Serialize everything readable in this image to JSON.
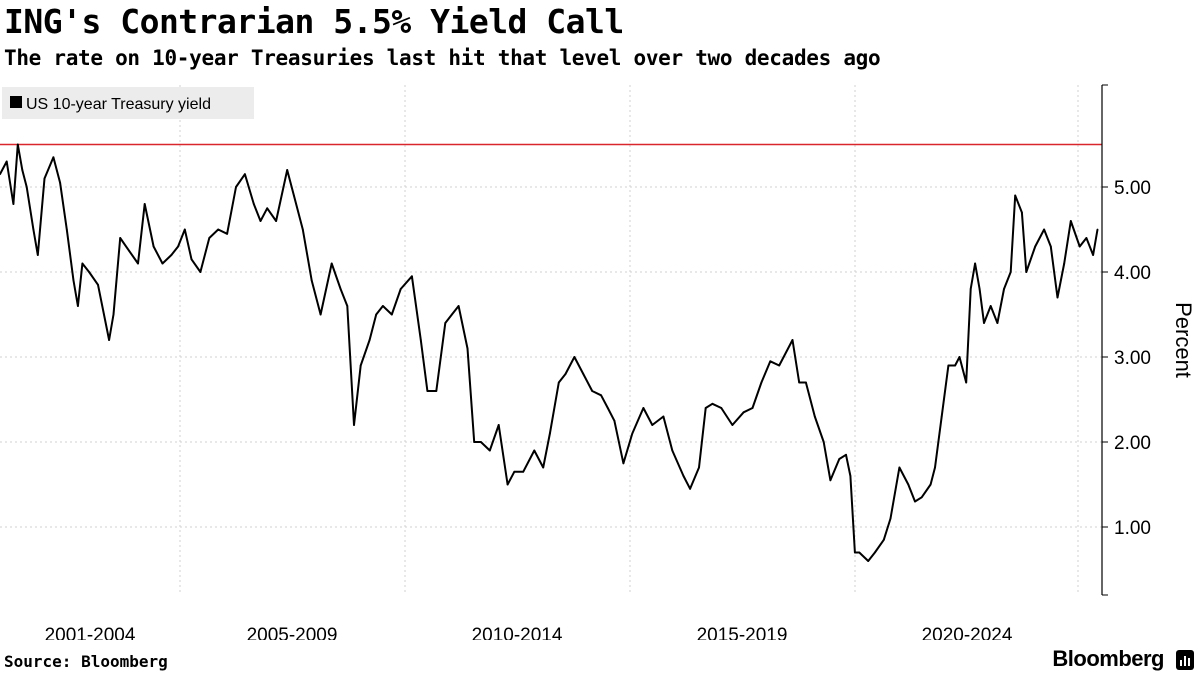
{
  "header": {
    "title": "ING's Contrarian 5.5% Yield Call",
    "subtitle": "The rate on 10-year Treasuries last hit that level over two decades ago"
  },
  "footer": {
    "source": "Source: Bloomberg",
    "brand": "Bloomberg"
  },
  "colors": {
    "line": "#000000",
    "reference_line": "#d9262c",
    "grid": "#d0d0d0",
    "axis": "#000000",
    "legend_bg": "#ececec"
  },
  "chart_data": {
    "type": "line",
    "ylabel": "Percent",
    "ylim": [
      0.2,
      6.2
    ],
    "yticks": [
      1,
      2,
      3,
      4,
      5
    ],
    "ytick_labels": [
      "1.00",
      "2.00",
      "3.00",
      "4.00",
      "5.00"
    ],
    "xlim": [
      2001.0,
      2025.75
    ],
    "xtick_labels": [
      "2001-2004",
      "2005-2009",
      "2010-2014",
      "2015-2019",
      "2020-2024"
    ],
    "legend": {
      "position": "top-left",
      "entries": [
        "US 10-year Treasury yield"
      ]
    },
    "grid": true,
    "reference_line": {
      "value": 5.5
    },
    "series": [
      {
        "name": "US 10-year Treasury yield",
        "x": [
          2001.0,
          2001.15,
          2001.3,
          2001.4,
          2001.5,
          2001.6,
          2001.75,
          2001.85,
          2002.0,
          2002.2,
          2002.35,
          2002.5,
          2002.65,
          2002.75,
          2002.85,
          2003.0,
          2003.2,
          2003.45,
          2003.55,
          2003.7,
          2003.9,
          2004.1,
          2004.25,
          2004.45,
          2004.65,
          2004.85,
          2005.0,
          2005.15,
          2005.3,
          2005.5,
          2005.7,
          2005.9,
          2006.1,
          2006.3,
          2006.5,
          2006.7,
          2006.85,
          2007.0,
          2007.2,
          2007.45,
          2007.6,
          2007.8,
          2008.0,
          2008.2,
          2008.45,
          2008.65,
          2008.8,
          2008.95,
          2009.1,
          2009.3,
          2009.45,
          2009.6,
          2009.8,
          2010.0,
          2010.25,
          2010.45,
          2010.6,
          2010.8,
          2011.0,
          2011.15,
          2011.3,
          2011.5,
          2011.65,
          2011.8,
          2012.0,
          2012.2,
          2012.4,
          2012.55,
          2012.75,
          2013.0,
          2013.2,
          2013.35,
          2013.55,
          2013.7,
          2013.9,
          2014.1,
          2014.3,
          2014.5,
          2014.65,
          2014.8,
          2015.0,
          2015.2,
          2015.45,
          2015.65,
          2015.9,
          2016.1,
          2016.35,
          2016.5,
          2016.7,
          2016.85,
          2017.0,
          2017.2,
          2017.45,
          2017.7,
          2017.9,
          2018.1,
          2018.3,
          2018.5,
          2018.8,
          2018.95,
          2019.1,
          2019.3,
          2019.5,
          2019.65,
          2019.85,
          2020.0,
          2020.1,
          2020.2,
          2020.3,
          2020.5,
          2020.65,
          2020.85,
          2021.0,
          2021.2,
          2021.4,
          2021.55,
          2021.7,
          2021.9,
          2022.0,
          2022.15,
          2022.3,
          2022.45,
          2022.55,
          2022.7,
          2022.8,
          2022.9,
          2023.0,
          2023.1,
          2023.25,
          2023.4,
          2023.55,
          2023.7,
          2023.8,
          2023.95,
          2024.05,
          2024.25,
          2024.45,
          2024.6,
          2024.75,
          2024.9,
          2025.05,
          2025.25,
          2025.4,
          2025.55,
          2025.65
        ],
        "values": [
          5.15,
          5.3,
          4.8,
          5.5,
          5.2,
          5.0,
          4.5,
          4.2,
          5.1,
          5.35,
          5.05,
          4.5,
          3.9,
          3.6,
          4.1,
          4.0,
          3.85,
          3.2,
          3.5,
          4.4,
          4.25,
          4.1,
          4.8,
          4.3,
          4.1,
          4.2,
          4.3,
          4.5,
          4.15,
          4.0,
          4.4,
          4.5,
          4.45,
          5.0,
          5.15,
          4.8,
          4.6,
          4.75,
          4.6,
          5.2,
          4.9,
          4.5,
          3.9,
          3.5,
          4.1,
          3.8,
          3.6,
          2.2,
          2.9,
          3.2,
          3.5,
          3.6,
          3.5,
          3.8,
          3.95,
          3.2,
          2.6,
          2.6,
          3.4,
          3.5,
          3.6,
          3.1,
          2.0,
          2.0,
          1.9,
          2.2,
          1.5,
          1.65,
          1.65,
          1.9,
          1.7,
          2.1,
          2.7,
          2.8,
          3.0,
          2.8,
          2.6,
          2.55,
          2.4,
          2.25,
          1.75,
          2.1,
          2.4,
          2.2,
          2.3,
          1.9,
          1.6,
          1.45,
          1.7,
          2.4,
          2.45,
          2.4,
          2.2,
          2.35,
          2.4,
          2.7,
          2.95,
          2.9,
          3.2,
          2.7,
          2.7,
          2.3,
          2.0,
          1.55,
          1.8,
          1.85,
          1.6,
          0.7,
          0.7,
          0.6,
          0.7,
          0.85,
          1.1,
          1.7,
          1.5,
          1.3,
          1.35,
          1.5,
          1.7,
          2.3,
          2.9,
          2.9,
          3.0,
          2.7,
          3.8,
          4.1,
          3.8,
          3.4,
          3.6,
          3.4,
          3.8,
          4.0,
          4.9,
          4.7,
          4.0,
          4.3,
          4.5,
          4.3,
          3.7,
          4.1,
          4.6,
          4.3,
          4.4,
          4.2,
          4.5
        ]
      }
    ]
  }
}
